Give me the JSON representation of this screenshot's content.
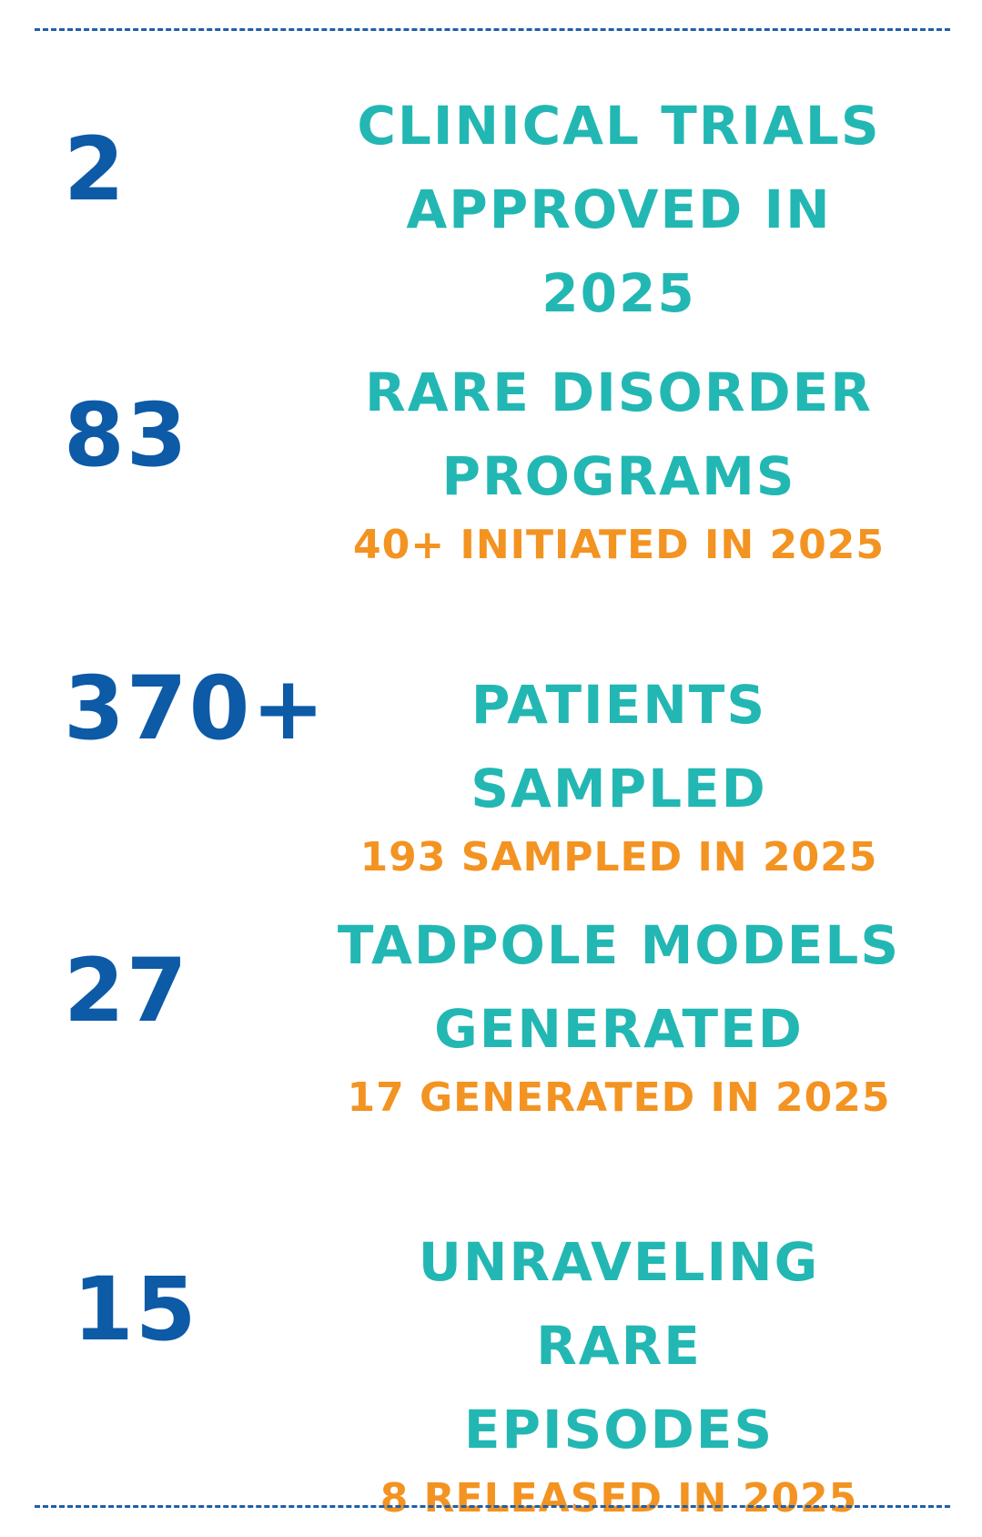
{
  "stats": [
    {
      "number": "2",
      "title_lines": [
        "CLINICAL TRIALS",
        "APPROVED IN 2025"
      ],
      "subtitle": ""
    },
    {
      "number": "83",
      "title_lines": [
        "RARE DISORDER",
        "PROGRAMS"
      ],
      "subtitle": "40+ INITIATED IN 2025"
    },
    {
      "number": "370+",
      "title_lines": [
        "PATIENTS SAMPLED"
      ],
      "subtitle": "193 SAMPLED IN 2025"
    },
    {
      "number": "27",
      "title_lines": [
        "TADPOLE MODELS",
        "GENERATED"
      ],
      "subtitle": "17 GENERATED IN 2025"
    },
    {
      "number": "15",
      "title_lines": [
        "UNRAVELING RARE",
        "EPISODES"
      ],
      "subtitle": "8 RELEASED IN 2025"
    }
  ],
  "colors": {
    "number": "#0d5aa7",
    "title": "#23b7b3",
    "subtitle": "#f39321",
    "rule": "#1f5fa8"
  }
}
